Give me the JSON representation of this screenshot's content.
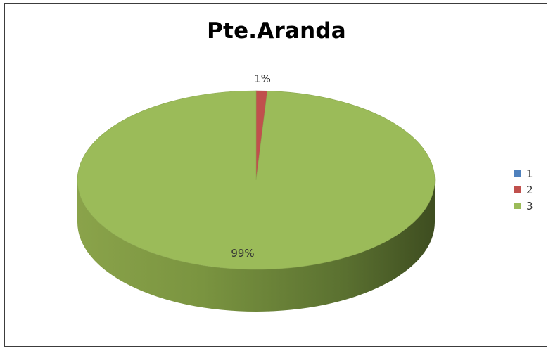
{
  "chart_data": {
    "type": "pie",
    "title": "Pte.Aranda",
    "three_d": true,
    "categories": [
      "1",
      "2",
      "3"
    ],
    "values": [
      0,
      1,
      99
    ],
    "data_labels": [
      "",
      "1%",
      "99%"
    ],
    "colors": [
      "#4f81bd",
      "#c0504d",
      "#9bbb59"
    ],
    "legend_position": "right"
  }
}
